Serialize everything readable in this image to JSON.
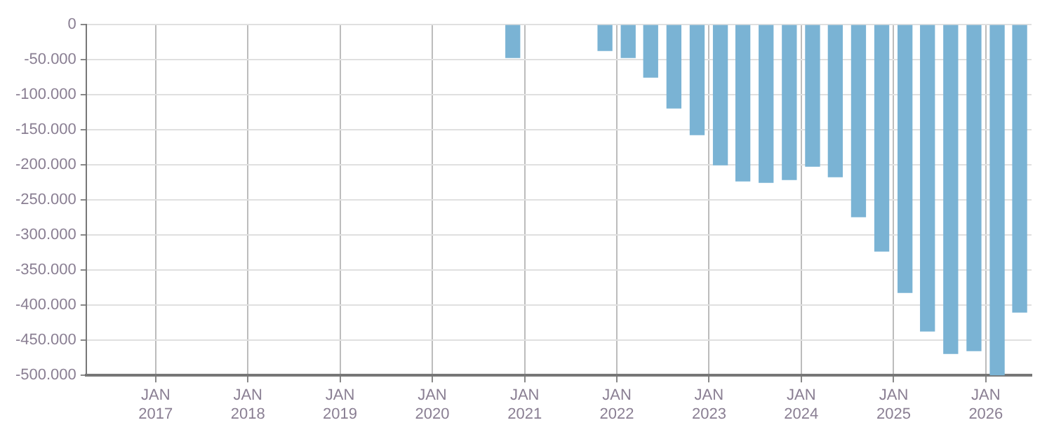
{
  "chart_data": {
    "type": "bar",
    "x": [
      "2020-11-15",
      "2021-11-15",
      "2022-02-15",
      "2022-05-15",
      "2022-08-15",
      "2022-11-15",
      "2023-02-15",
      "2023-05-15",
      "2023-08-15",
      "2023-11-15",
      "2024-02-15",
      "2024-05-15",
      "2024-08-15",
      "2024-11-15",
      "2025-02-15",
      "2025-05-15",
      "2025-08-15",
      "2025-11-15",
      "2026-02-15",
      "2026-05-15"
    ],
    "series": [
      {
        "color": "#7ab3d4",
        "values": [
          -47000,
          -37000,
          -47000,
          -75000,
          -119000,
          -157000,
          -200000,
          -223000,
          -225000,
          -221000,
          -202000,
          -217000,
          -274000,
          -323000,
          -382000,
          -437000,
          -469000,
          -465000,
          -500000,
          -410000
        ]
      }
    ],
    "xlim": [
      "2016-04-01",
      "2026-07-01"
    ],
    "xticks": [
      {
        "value": "2017-01-01",
        "label": "JAN 2017"
      },
      {
        "value": "2018-01-01",
        "label": "JAN 2018"
      },
      {
        "value": "2019-01-01",
        "label": "JAN 2019"
      },
      {
        "value": "2020-01-01",
        "label": "JAN 2020"
      },
      {
        "value": "2021-01-01",
        "label": "JAN 2021"
      },
      {
        "value": "2022-01-01",
        "label": "JAN 2022"
      },
      {
        "value": "2023-01-01",
        "label": "JAN 2023"
      },
      {
        "value": "2024-01-01",
        "label": "JAN 2024"
      },
      {
        "value": "2025-01-01",
        "label": "JAN 2025"
      },
      {
        "value": "2026-01-01",
        "label": "JAN 2026"
      }
    ],
    "ylim": [
      -500000,
      0
    ],
    "yticks": [
      {
        "value": -500000,
        "label": "-500.000"
      },
      {
        "value": -450000,
        "label": "-450.000"
      },
      {
        "value": -400000,
        "label": "-400.000"
      },
      {
        "value": -350000,
        "label": "-350.000"
      },
      {
        "value": -300000,
        "label": "-300.000"
      },
      {
        "value": -250000,
        "label": "-250.000"
      },
      {
        "value": -200000,
        "label": "-200.000"
      },
      {
        "value": -150000,
        "label": "-150.000"
      },
      {
        "value": -100000,
        "label": "-100.000"
      },
      {
        "value": -50000,
        "label": "-50.000"
      },
      0
    ],
    "grid": true,
    "legend": false
  }
}
